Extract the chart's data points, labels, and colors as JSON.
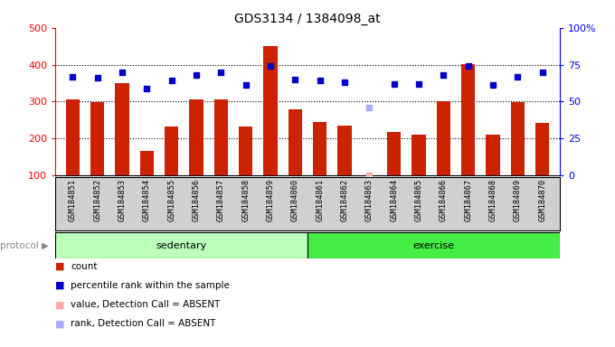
{
  "title": "GDS3134 / 1384098_at",
  "samples": [
    "GSM184851",
    "GSM184852",
    "GSM184853",
    "GSM184854",
    "GSM184855",
    "GSM184856",
    "GSM184857",
    "GSM184858",
    "GSM184859",
    "GSM184860",
    "GSM184861",
    "GSM184862",
    "GSM184863",
    "GSM184864",
    "GSM184865",
    "GSM184866",
    "GSM184867",
    "GSM184868",
    "GSM184869",
    "GSM184870"
  ],
  "counts": [
    305,
    298,
    350,
    165,
    232,
    305,
    305,
    232,
    450,
    278,
    245,
    235,
    100,
    218,
    211,
    300,
    402,
    211,
    298,
    243
  ],
  "percentile_ranks": [
    67,
    66,
    70,
    59,
    64,
    68,
    70,
    61,
    74,
    65,
    64,
    63,
    null,
    62,
    62,
    68,
    74,
    61,
    67,
    70
  ],
  "absent_value": [
    null,
    null,
    null,
    null,
    null,
    null,
    null,
    null,
    null,
    null,
    null,
    null,
    100,
    null,
    null,
    null,
    null,
    null,
    null,
    null
  ],
  "absent_rank": [
    null,
    null,
    null,
    null,
    null,
    null,
    null,
    null,
    null,
    null,
    null,
    null,
    46,
    null,
    null,
    null,
    null,
    null,
    null,
    null
  ],
  "sedentary_count": 10,
  "exercise_count": 10,
  "bar_color": "#cc2200",
  "dot_color": "#0000cc",
  "absent_value_color": "#ffaaaa",
  "absent_rank_color": "#aaaaff",
  "sedentary_color": "#bbffbb",
  "exercise_color": "#44ee44",
  "ylim_left": [
    100,
    500
  ],
  "ylim_right": [
    0,
    100
  ],
  "yticks_left": [
    100,
    200,
    300,
    400,
    500
  ],
  "yticks_right": [
    0,
    25,
    50,
    75,
    100
  ],
  "yticklabels_right": [
    "0",
    "25",
    "50",
    "75",
    "100%"
  ],
  "gridline_values": [
    200,
    300,
    400
  ],
  "xlabel_bg": "#d0d0d0",
  "legend_items": [
    {
      "color": "#cc2200",
      "label": "count"
    },
    {
      "color": "#0000cc",
      "label": "percentile rank within the sample"
    },
    {
      "color": "#ffaaaa",
      "label": "value, Detection Call = ABSENT"
    },
    {
      "color": "#aaaaff",
      "label": "rank, Detection Call = ABSENT"
    }
  ]
}
